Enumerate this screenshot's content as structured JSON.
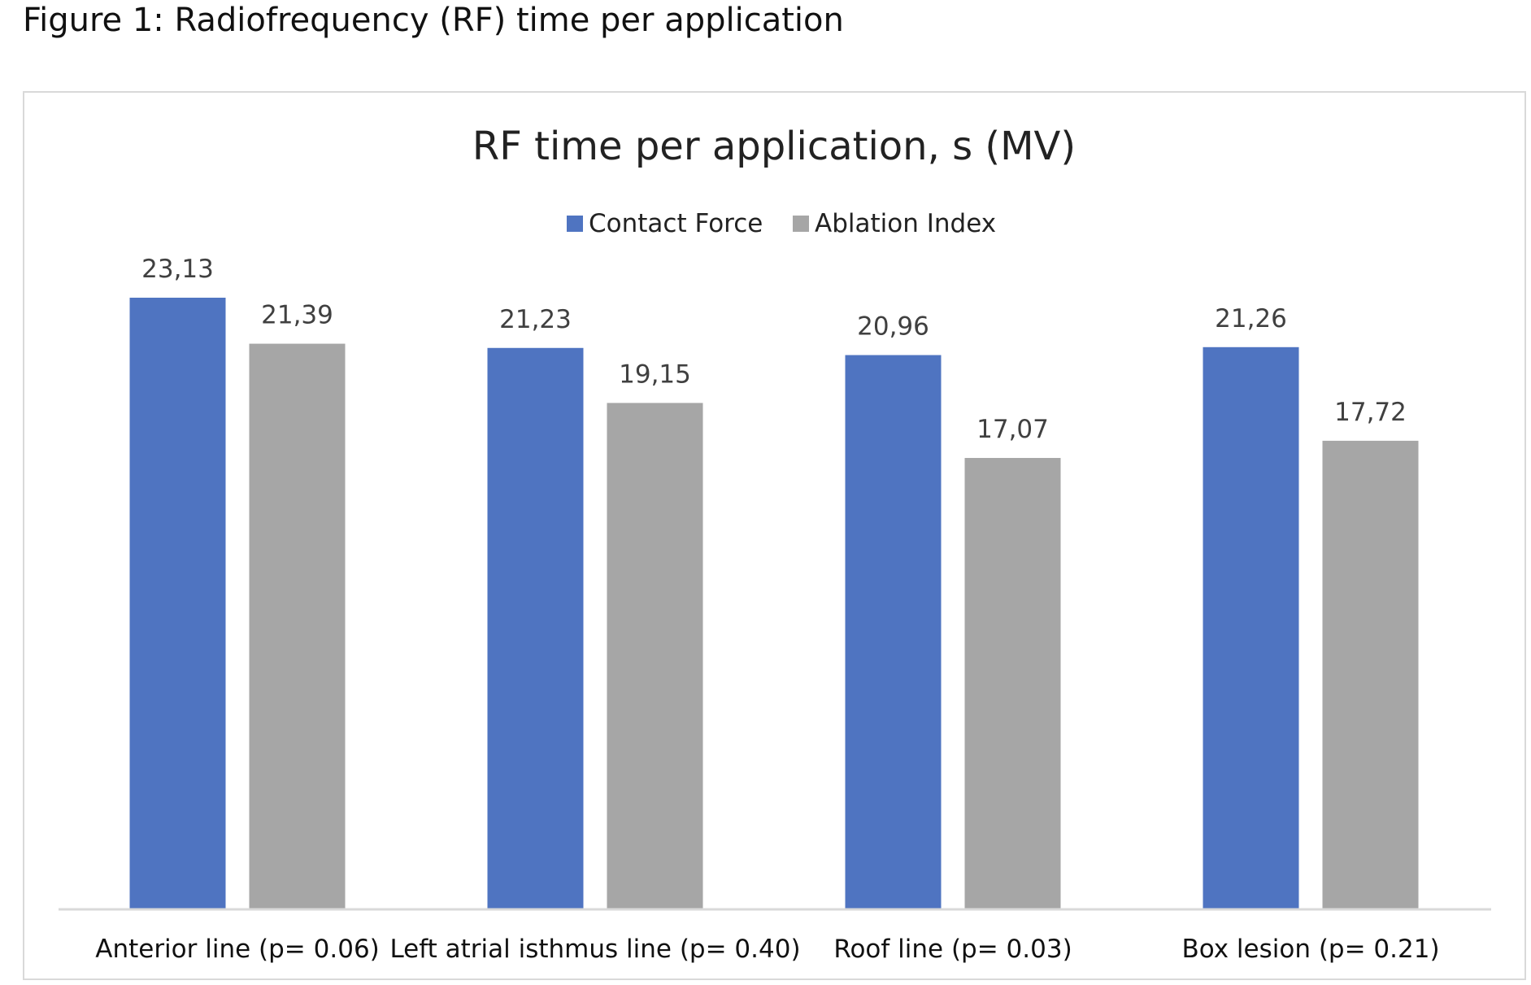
{
  "figure": {
    "caption": "Figure 1: Radiofrequency (RF) time per application"
  },
  "chart_data": {
    "type": "bar",
    "title": "RF time per application, s (MV)",
    "xlabel": "",
    "ylabel": "",
    "categories": [
      "Anterior line (p= 0.06)",
      "Left atrial isthmus line (p= 0.40)",
      "Roof line (p= 0.03)",
      "Box lesion (p= 0.21)"
    ],
    "series": [
      {
        "name": "Contact Force",
        "color": "#4f74c1",
        "values": [
          23.13,
          21.23,
          20.96,
          21.26
        ],
        "labels": [
          "23,13",
          "21,23",
          "20,96",
          "21,26"
        ]
      },
      {
        "name": "Ablation Index",
        "color": "#a6a6a6",
        "values": [
          21.39,
          19.15,
          17.07,
          17.72
        ],
        "labels": [
          "21,39",
          "19,15",
          "17,07",
          "17,72"
        ]
      }
    ],
    "ylim": [
      0,
      23.13
    ],
    "legend_position": "top",
    "grid": false,
    "axis_color": "#d9d9d9"
  }
}
